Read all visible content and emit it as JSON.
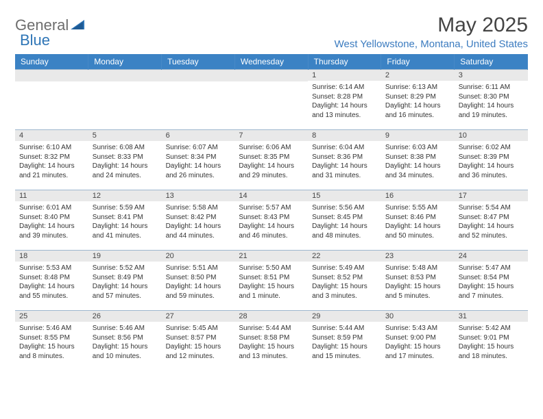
{
  "brand": {
    "part1": "General",
    "part2": "Blue"
  },
  "title": "May 2025",
  "location": "West Yellowstone, Montana, United States",
  "colors": {
    "header_bg": "#3b82c4",
    "header_text": "#ffffff",
    "daynum_bg": "#e9e9e9",
    "brand_blue": "#2e75b6",
    "location_color": "#3b7bbf",
    "cell_border": "#9db6ce"
  },
  "weekdays": [
    "Sunday",
    "Monday",
    "Tuesday",
    "Wednesday",
    "Thursday",
    "Friday",
    "Saturday"
  ],
  "weeks": [
    [
      {
        "day": null
      },
      {
        "day": null
      },
      {
        "day": null
      },
      {
        "day": null
      },
      {
        "day": "1",
        "sunrise": "Sunrise: 6:14 AM",
        "sunset": "Sunset: 8:28 PM",
        "daylight": "Daylight: 14 hours and 13 minutes."
      },
      {
        "day": "2",
        "sunrise": "Sunrise: 6:13 AM",
        "sunset": "Sunset: 8:29 PM",
        "daylight": "Daylight: 14 hours and 16 minutes."
      },
      {
        "day": "3",
        "sunrise": "Sunrise: 6:11 AM",
        "sunset": "Sunset: 8:30 PM",
        "daylight": "Daylight: 14 hours and 19 minutes."
      }
    ],
    [
      {
        "day": "4",
        "sunrise": "Sunrise: 6:10 AM",
        "sunset": "Sunset: 8:32 PM",
        "daylight": "Daylight: 14 hours and 21 minutes."
      },
      {
        "day": "5",
        "sunrise": "Sunrise: 6:08 AM",
        "sunset": "Sunset: 8:33 PM",
        "daylight": "Daylight: 14 hours and 24 minutes."
      },
      {
        "day": "6",
        "sunrise": "Sunrise: 6:07 AM",
        "sunset": "Sunset: 8:34 PM",
        "daylight": "Daylight: 14 hours and 26 minutes."
      },
      {
        "day": "7",
        "sunrise": "Sunrise: 6:06 AM",
        "sunset": "Sunset: 8:35 PM",
        "daylight": "Daylight: 14 hours and 29 minutes."
      },
      {
        "day": "8",
        "sunrise": "Sunrise: 6:04 AM",
        "sunset": "Sunset: 8:36 PM",
        "daylight": "Daylight: 14 hours and 31 minutes."
      },
      {
        "day": "9",
        "sunrise": "Sunrise: 6:03 AM",
        "sunset": "Sunset: 8:38 PM",
        "daylight": "Daylight: 14 hours and 34 minutes."
      },
      {
        "day": "10",
        "sunrise": "Sunrise: 6:02 AM",
        "sunset": "Sunset: 8:39 PM",
        "daylight": "Daylight: 14 hours and 36 minutes."
      }
    ],
    [
      {
        "day": "11",
        "sunrise": "Sunrise: 6:01 AM",
        "sunset": "Sunset: 8:40 PM",
        "daylight": "Daylight: 14 hours and 39 minutes."
      },
      {
        "day": "12",
        "sunrise": "Sunrise: 5:59 AM",
        "sunset": "Sunset: 8:41 PM",
        "daylight": "Daylight: 14 hours and 41 minutes."
      },
      {
        "day": "13",
        "sunrise": "Sunrise: 5:58 AM",
        "sunset": "Sunset: 8:42 PM",
        "daylight": "Daylight: 14 hours and 44 minutes."
      },
      {
        "day": "14",
        "sunrise": "Sunrise: 5:57 AM",
        "sunset": "Sunset: 8:43 PM",
        "daylight": "Daylight: 14 hours and 46 minutes."
      },
      {
        "day": "15",
        "sunrise": "Sunrise: 5:56 AM",
        "sunset": "Sunset: 8:45 PM",
        "daylight": "Daylight: 14 hours and 48 minutes."
      },
      {
        "day": "16",
        "sunrise": "Sunrise: 5:55 AM",
        "sunset": "Sunset: 8:46 PM",
        "daylight": "Daylight: 14 hours and 50 minutes."
      },
      {
        "day": "17",
        "sunrise": "Sunrise: 5:54 AM",
        "sunset": "Sunset: 8:47 PM",
        "daylight": "Daylight: 14 hours and 52 minutes."
      }
    ],
    [
      {
        "day": "18",
        "sunrise": "Sunrise: 5:53 AM",
        "sunset": "Sunset: 8:48 PM",
        "daylight": "Daylight: 14 hours and 55 minutes."
      },
      {
        "day": "19",
        "sunrise": "Sunrise: 5:52 AM",
        "sunset": "Sunset: 8:49 PM",
        "daylight": "Daylight: 14 hours and 57 minutes."
      },
      {
        "day": "20",
        "sunrise": "Sunrise: 5:51 AM",
        "sunset": "Sunset: 8:50 PM",
        "daylight": "Daylight: 14 hours and 59 minutes."
      },
      {
        "day": "21",
        "sunrise": "Sunrise: 5:50 AM",
        "sunset": "Sunset: 8:51 PM",
        "daylight": "Daylight: 15 hours and 1 minute."
      },
      {
        "day": "22",
        "sunrise": "Sunrise: 5:49 AM",
        "sunset": "Sunset: 8:52 PM",
        "daylight": "Daylight: 15 hours and 3 minutes."
      },
      {
        "day": "23",
        "sunrise": "Sunrise: 5:48 AM",
        "sunset": "Sunset: 8:53 PM",
        "daylight": "Daylight: 15 hours and 5 minutes."
      },
      {
        "day": "24",
        "sunrise": "Sunrise: 5:47 AM",
        "sunset": "Sunset: 8:54 PM",
        "daylight": "Daylight: 15 hours and 7 minutes."
      }
    ],
    [
      {
        "day": "25",
        "sunrise": "Sunrise: 5:46 AM",
        "sunset": "Sunset: 8:55 PM",
        "daylight": "Daylight: 15 hours and 8 minutes."
      },
      {
        "day": "26",
        "sunrise": "Sunrise: 5:46 AM",
        "sunset": "Sunset: 8:56 PM",
        "daylight": "Daylight: 15 hours and 10 minutes."
      },
      {
        "day": "27",
        "sunrise": "Sunrise: 5:45 AM",
        "sunset": "Sunset: 8:57 PM",
        "daylight": "Daylight: 15 hours and 12 minutes."
      },
      {
        "day": "28",
        "sunrise": "Sunrise: 5:44 AM",
        "sunset": "Sunset: 8:58 PM",
        "daylight": "Daylight: 15 hours and 13 minutes."
      },
      {
        "day": "29",
        "sunrise": "Sunrise: 5:44 AM",
        "sunset": "Sunset: 8:59 PM",
        "daylight": "Daylight: 15 hours and 15 minutes."
      },
      {
        "day": "30",
        "sunrise": "Sunrise: 5:43 AM",
        "sunset": "Sunset: 9:00 PM",
        "daylight": "Daylight: 15 hours and 17 minutes."
      },
      {
        "day": "31",
        "sunrise": "Sunrise: 5:42 AM",
        "sunset": "Sunset: 9:01 PM",
        "daylight": "Daylight: 15 hours and 18 minutes."
      }
    ]
  ]
}
